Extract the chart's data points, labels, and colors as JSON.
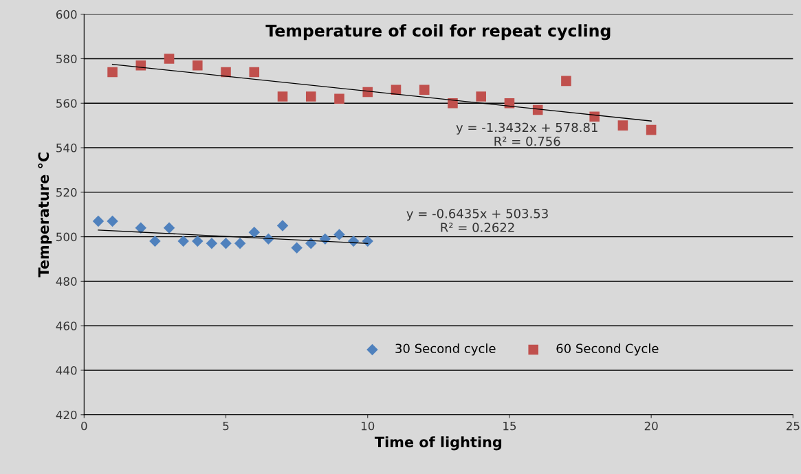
{
  "chart_data": {
    "type": "scatter",
    "title": "Temperature of coil for repeat cycling",
    "xlabel": "Time of lighting",
    "ylabel": "Temperature °C",
    "series": [
      {
        "name": "30 Second cycle",
        "color": "#4f81bd",
        "marker": "diamond",
        "x": [
          0.5,
          1,
          2,
          2.5,
          3,
          3.5,
          4,
          4.5,
          5,
          5.5,
          6,
          6.5,
          7,
          7.5,
          8,
          8.5,
          9,
          9.5,
          10
        ],
        "values": [
          507,
          507,
          504,
          498,
          504,
          498,
          498,
          497,
          497,
          497,
          502,
          499,
          505,
          495,
          497,
          499,
          501,
          498,
          498
        ]
      },
      {
        "name": "60 Second Cycle",
        "color": "#c0504d",
        "marker": "square",
        "x": [
          1,
          2,
          3,
          4,
          5,
          6,
          7,
          8,
          9,
          10,
          11,
          12,
          13,
          14,
          15,
          16,
          17,
          18,
          19,
          20
        ],
        "values": [
          574,
          577,
          580,
          577,
          574,
          574,
          563,
          563,
          562,
          565,
          566,
          566,
          560,
          563,
          560,
          557,
          570,
          554,
          550,
          548
        ]
      },
      {
        "type": "line",
        "color": "#000000",
        "marker": "none",
        "x": [
          0.5,
          10
        ],
        "values": [
          503,
          497
        ]
      },
      {
        "type": "line",
        "color": "#000000",
        "marker": "none",
        "x": [
          1,
          20
        ],
        "values": [
          577.5,
          552
        ]
      }
    ],
    "annotations": [
      "y = -0.6435x + 503.53\nR² = 0.2622",
      "y = -1.3432x + 578.81\nR² = 0.756"
    ],
    "xlim": [
      0,
      25
    ],
    "xticks": [
      0,
      5,
      10,
      15,
      20,
      25
    ],
    "ylim": [
      420,
      600
    ],
    "yticks": [
      420,
      440,
      460,
      480,
      500,
      520,
      540,
      560,
      580,
      600
    ],
    "grid": "y",
    "legend": "bottom"
  }
}
